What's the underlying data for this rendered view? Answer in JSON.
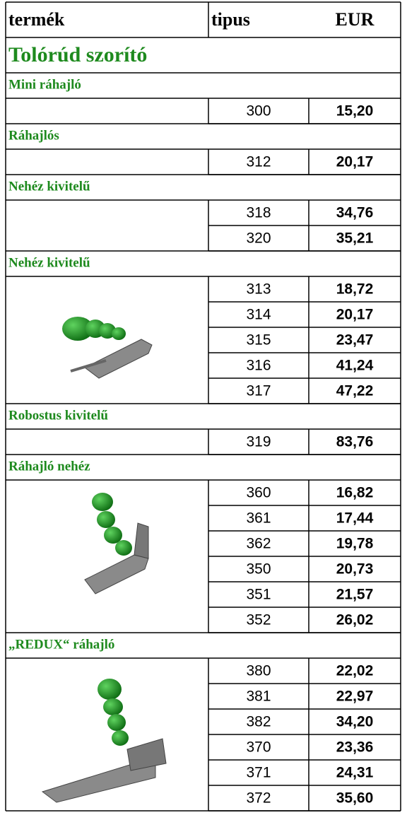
{
  "header": [
    "termék",
    "tipus",
    "EUR"
  ],
  "title": "Tolórúd szorító",
  "sections": [
    {
      "name": "Mini ráhajló",
      "rows": [
        [
          "300",
          "15,20"
        ]
      ]
    },
    {
      "name": "Ráhajlós",
      "rows": [
        [
          "312",
          "20,17"
        ]
      ]
    },
    {
      "name": "Nehéz kivitelű",
      "rows": [
        [
          "318",
          "34,76"
        ],
        [
          "320",
          "35,21"
        ]
      ]
    },
    {
      "name": "Nehéz kivitelű",
      "rows": [
        [
          "313",
          "18,72"
        ],
        [
          "314",
          "20,17"
        ],
        [
          "315",
          "23,47"
        ],
        [
          "316",
          "41,24"
        ],
        [
          "317",
          "47,22"
        ]
      ]
    },
    {
      "name": "Robostus kivitelű",
      "rows": [
        [
          "319",
          "83,76"
        ]
      ]
    },
    {
      "name": "Ráhajló nehéz",
      "rows": [
        [
          "360",
          "16,82"
        ],
        [
          "361",
          "17,44"
        ],
        [
          "362",
          "19,78"
        ],
        [
          "350",
          "20,73"
        ],
        [
          "351",
          "21,57"
        ],
        [
          "352",
          "26,02"
        ]
      ]
    },
    {
      "name": "„REDUX“  ráhajló",
      "rows": [
        [
          "380",
          "22,02"
        ],
        [
          "381",
          "22,97"
        ],
        [
          "382",
          "34,20"
        ],
        [
          "370",
          "23,36"
        ],
        [
          "371",
          "24,31"
        ],
        [
          "372",
          "35,60"
        ]
      ]
    }
  ]
}
